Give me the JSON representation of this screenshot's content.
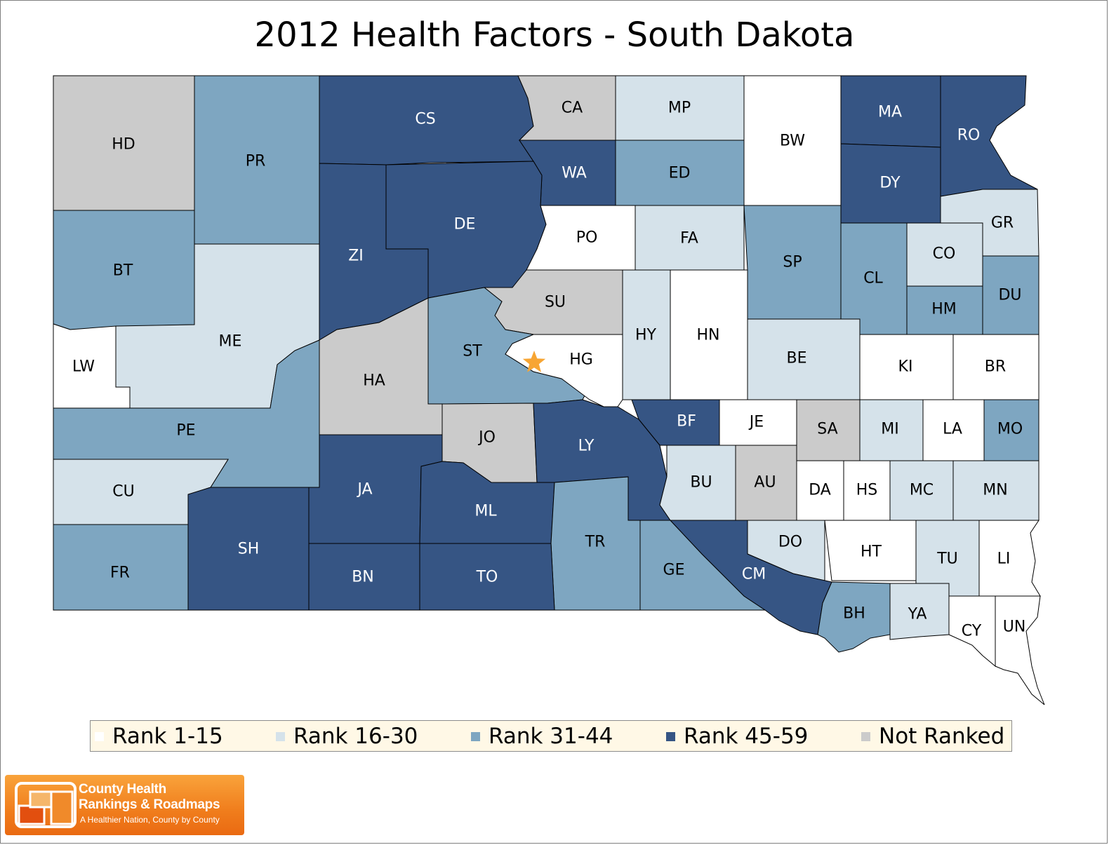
{
  "title": "2012 Health Factors - South Dakota",
  "colors": {
    "rank_1_15": "#ffffff",
    "rank_16_30": "#d5e2ea",
    "rank_31_44": "#7ea6c1",
    "rank_45_59": "#365584",
    "not_ranked": "#cbcbcb",
    "star": "#f7a533",
    "border": "#000000"
  },
  "legend": [
    {
      "label": "Rank 1-15",
      "color": "#ffffff"
    },
    {
      "label": "Rank 16-30",
      "color": "#d5e2ea"
    },
    {
      "label": "Rank 31-44",
      "color": "#7ea6c1"
    },
    {
      "label": "Rank 45-59",
      "color": "#365584"
    },
    {
      "label": "Not Ranked",
      "color": "#cbcbcb"
    }
  ],
  "counties": [
    {
      "abbr": "HD",
      "category": "not_ranked"
    },
    {
      "abbr": "PR",
      "category": "rank_31_44"
    },
    {
      "abbr": "CS",
      "category": "rank_45_59"
    },
    {
      "abbr": "CA",
      "category": "not_ranked"
    },
    {
      "abbr": "MP",
      "category": "rank_16_30"
    },
    {
      "abbr": "BW",
      "category": "rank_1_15"
    },
    {
      "abbr": "MA",
      "category": "rank_45_59"
    },
    {
      "abbr": "RO",
      "category": "rank_45_59"
    },
    {
      "abbr": "WA",
      "category": "rank_45_59"
    },
    {
      "abbr": "ED",
      "category": "rank_31_44"
    },
    {
      "abbr": "DY",
      "category": "rank_45_59"
    },
    {
      "abbr": "BT",
      "category": "rank_31_44"
    },
    {
      "abbr": "ZI",
      "category": "rank_45_59"
    },
    {
      "abbr": "DE",
      "category": "rank_45_59"
    },
    {
      "abbr": "PO",
      "category": "rank_1_15"
    },
    {
      "abbr": "FA",
      "category": "rank_16_30"
    },
    {
      "abbr": "SP",
      "category": "rank_31_44"
    },
    {
      "abbr": "GR",
      "category": "rank_16_30"
    },
    {
      "abbr": "CO",
      "category": "rank_16_30"
    },
    {
      "abbr": "CL",
      "category": "rank_31_44"
    },
    {
      "abbr": "DU",
      "category": "rank_31_44"
    },
    {
      "abbr": "HM",
      "category": "rank_31_44"
    },
    {
      "abbr": "SU",
      "category": "not_ranked"
    },
    {
      "abbr": "ME",
      "category": "rank_16_30"
    },
    {
      "abbr": "LW",
      "category": "rank_1_15"
    },
    {
      "abbr": "HY",
      "category": "rank_16_30"
    },
    {
      "abbr": "HN",
      "category": "rank_1_15"
    },
    {
      "abbr": "ST",
      "category": "rank_31_44"
    },
    {
      "abbr": "HG",
      "category": "rank_1_15"
    },
    {
      "abbr": "BE",
      "category": "rank_16_30"
    },
    {
      "abbr": "KI",
      "category": "rank_1_15"
    },
    {
      "abbr": "BR",
      "category": "rank_1_15"
    },
    {
      "abbr": "HA",
      "category": "not_ranked"
    },
    {
      "abbr": "PE",
      "category": "rank_31_44"
    },
    {
      "abbr": "BF",
      "category": "rank_45_59"
    },
    {
      "abbr": "JE",
      "category": "rank_1_15"
    },
    {
      "abbr": "SA",
      "category": "not_ranked"
    },
    {
      "abbr": "MI",
      "category": "rank_16_30"
    },
    {
      "abbr": "LA",
      "category": "rank_1_15"
    },
    {
      "abbr": "MO",
      "category": "rank_31_44"
    },
    {
      "abbr": "JO",
      "category": "not_ranked"
    },
    {
      "abbr": "LY",
      "category": "rank_45_59"
    },
    {
      "abbr": "CU",
      "category": "rank_16_30"
    },
    {
      "abbr": "JA",
      "category": "rank_45_59"
    },
    {
      "abbr": "ML",
      "category": "rank_45_59"
    },
    {
      "abbr": "BU",
      "category": "rank_16_30"
    },
    {
      "abbr": "AU",
      "category": "not_ranked"
    },
    {
      "abbr": "DA",
      "category": "rank_1_15"
    },
    {
      "abbr": "HS",
      "category": "rank_1_15"
    },
    {
      "abbr": "MC",
      "category": "rank_16_30"
    },
    {
      "abbr": "MN",
      "category": "rank_16_30"
    },
    {
      "abbr": "SH",
      "category": "rank_45_59"
    },
    {
      "abbr": "TR",
      "category": "rank_31_44"
    },
    {
      "abbr": "DO",
      "category": "rank_16_30"
    },
    {
      "abbr": "HT",
      "category": "rank_1_15"
    },
    {
      "abbr": "TU",
      "category": "rank_16_30"
    },
    {
      "abbr": "LI",
      "category": "rank_1_15"
    },
    {
      "abbr": "FR",
      "category": "rank_31_44"
    },
    {
      "abbr": "BN",
      "category": "rank_45_59"
    },
    {
      "abbr": "TO",
      "category": "rank_45_59"
    },
    {
      "abbr": "GE",
      "category": "rank_31_44"
    },
    {
      "abbr": "CM",
      "category": "rank_45_59"
    },
    {
      "abbr": "BH",
      "category": "rank_31_44"
    },
    {
      "abbr": "YA",
      "category": "rank_16_30"
    },
    {
      "abbr": "CY",
      "category": "rank_1_15"
    },
    {
      "abbr": "UN",
      "category": "rank_1_15"
    }
  ],
  "capital_marker_icon": "star-icon",
  "logo": {
    "line1": "County Health",
    "line2": "Rankings & Roadmaps",
    "tagline": "A Healthier Nation, County by County"
  }
}
